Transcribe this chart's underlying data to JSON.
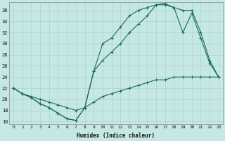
{
  "xlabel": "Humidex (Indice chaleur)",
  "bg_color": "#c5e8e5",
  "line_color": "#1a6b5a",
  "grid_color": "#aad4ce",
  "xlim": [
    -0.5,
    23.5
  ],
  "ylim": [
    15.5,
    37.5
  ],
  "yticks": [
    16,
    18,
    20,
    22,
    24,
    26,
    28,
    30,
    32,
    34,
    36
  ],
  "xticks": [
    0,
    1,
    2,
    3,
    4,
    5,
    6,
    7,
    8,
    9,
    10,
    11,
    12,
    13,
    14,
    15,
    16,
    17,
    18,
    19,
    20,
    21,
    22,
    23
  ],
  "series1_x": [
    0,
    1,
    2,
    3,
    4,
    5,
    6,
    7,
    8,
    9,
    10,
    11,
    12,
    13,
    14,
    15,
    16,
    17,
    18,
    19,
    20,
    21,
    22,
    23
  ],
  "series1_y": [
    22,
    21,
    20.3,
    19.2,
    18.5,
    17.5,
    16.5,
    16.2,
    18.5,
    25,
    30,
    31,
    33,
    35,
    36,
    36.5,
    37,
    37,
    36.5,
    32,
    35.5,
    31,
    26.5,
    24
  ],
  "series2_x": [
    0,
    1,
    2,
    3,
    4,
    5,
    6,
    7,
    8,
    9,
    10,
    11,
    12,
    13,
    14,
    15,
    16,
    17,
    18,
    19,
    20,
    21,
    22,
    23
  ],
  "series2_y": [
    22,
    21,
    20.3,
    19.2,
    18.5,
    17.5,
    16.5,
    16.2,
    18.5,
    25,
    27,
    28.5,
    30,
    32,
    33.5,
    35,
    37,
    37.2,
    36.5,
    36,
    36,
    32,
    27,
    24
  ],
  "series3_x": [
    0,
    1,
    2,
    3,
    4,
    5,
    6,
    7,
    8,
    9,
    10,
    11,
    12,
    13,
    14,
    15,
    16,
    17,
    18,
    19,
    20,
    21,
    22,
    23
  ],
  "series3_y": [
    22,
    21,
    20.5,
    20,
    19.5,
    19,
    18.5,
    18,
    18.5,
    19.5,
    20.5,
    21,
    21.5,
    22,
    22.5,
    23,
    23.5,
    23.5,
    24,
    24,
    24,
    24,
    24,
    24
  ]
}
